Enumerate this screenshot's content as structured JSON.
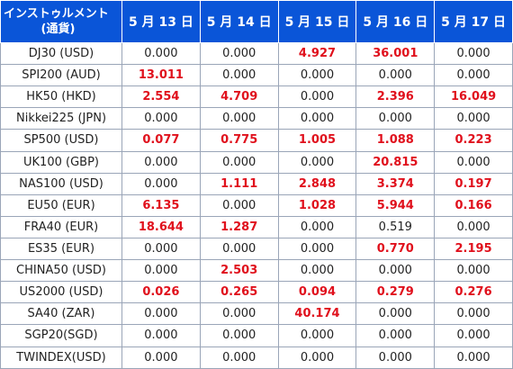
{
  "header": {
    "instrument_label": "インストゥルメント",
    "currency_label": "(通貨)",
    "dates": [
      "5 月 13 日",
      "5 月 14 日",
      "5 月 15 日",
      "5 月 16 日",
      "5 月 17 日"
    ]
  },
  "colors": {
    "header_bg": "#0a55d8",
    "highlight": "#e0101c",
    "text": "#222222"
  },
  "rows": [
    {
      "name": "DJ30 (USD)",
      "values": [
        "0.000",
        "0.000",
        "4.927",
        "36.001",
        "0.000"
      ]
    },
    {
      "name": "SPI200 (AUD)",
      "values": [
        "13.011",
        "0.000",
        "0.000",
        "0.000",
        "0.000"
      ]
    },
    {
      "name": "HK50 (HKD)",
      "values": [
        "2.554",
        "4.709",
        "0.000",
        "2.396",
        "16.049"
      ]
    },
    {
      "name": "Nikkei225 (JPN)",
      "values": [
        "0.000",
        "0.000",
        "0.000",
        "0.000",
        "0.000"
      ]
    },
    {
      "name": "SP500 (USD)",
      "values": [
        "0.077",
        "0.775",
        "1.005",
        "1.088",
        "0.223"
      ]
    },
    {
      "name": "UK100 (GBP)",
      "values": [
        "0.000",
        "0.000",
        "0.000",
        "20.815",
        "0.000"
      ]
    },
    {
      "name": "NAS100 (USD)",
      "values": [
        "0.000",
        "1.111",
        "2.848",
        "3.374",
        "0.197"
      ]
    },
    {
      "name": "EU50 (EUR)",
      "values": [
        "6.135",
        "0.000",
        "1.028",
        "5.944",
        "0.166"
      ]
    },
    {
      "name": "FRA40 (EUR)",
      "values": [
        "18.644",
        "1.287",
        "0.000",
        "0.519",
        "0.000"
      ]
    },
    {
      "name": "ES35 (EUR)",
      "values": [
        "0.000",
        "0.000",
        "0.000",
        "0.770",
        "2.195"
      ]
    },
    {
      "name": "CHINA50 (USD)",
      "values": [
        "0.000",
        "2.503",
        "0.000",
        "0.000",
        "0.000"
      ]
    },
    {
      "name": "US2000 (USD)",
      "values": [
        "0.026",
        "0.265",
        "0.094",
        "0.279",
        "0.276"
      ]
    },
    {
      "name": "SA40 (ZAR)",
      "values": [
        "0.000",
        "0.000",
        "40.174",
        "0.000",
        "0.000"
      ]
    },
    {
      "name": "SGP20(SGD)",
      "values": [
        "0.000",
        "0.000",
        "0.000",
        "0.000",
        "0.000"
      ]
    },
    {
      "name": "TWINDEX(USD)",
      "values": [
        "0.000",
        "0.000",
        "0.000",
        "0.000",
        "0.000"
      ]
    }
  ],
  "highlighted": [
    [
      false,
      false,
      true,
      true,
      false
    ],
    [
      true,
      false,
      false,
      false,
      false
    ],
    [
      true,
      true,
      false,
      true,
      true
    ],
    [
      false,
      false,
      false,
      false,
      false
    ],
    [
      true,
      true,
      true,
      true,
      true
    ],
    [
      false,
      false,
      false,
      true,
      false
    ],
    [
      false,
      true,
      true,
      true,
      true
    ],
    [
      true,
      false,
      true,
      true,
      true
    ],
    [
      true,
      true,
      false,
      false,
      false
    ],
    [
      false,
      false,
      false,
      true,
      true
    ],
    [
      false,
      true,
      false,
      false,
      false
    ],
    [
      true,
      true,
      true,
      true,
      true
    ],
    [
      false,
      false,
      true,
      false,
      false
    ],
    [
      false,
      false,
      false,
      false,
      false
    ],
    [
      false,
      false,
      false,
      false,
      false
    ]
  ]
}
